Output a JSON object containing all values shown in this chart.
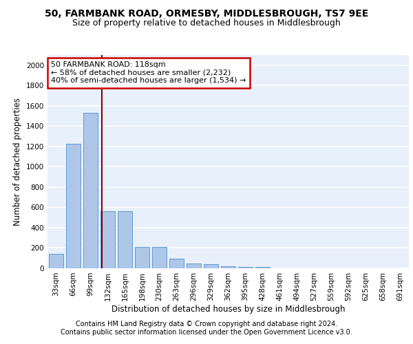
{
  "title1": "50, FARMBANK ROAD, ORMESBY, MIDDLESBROUGH, TS7 9EE",
  "title2": "Size of property relative to detached houses in Middlesbrough",
  "xlabel": "Distribution of detached houses by size in Middlesbrough",
  "ylabel": "Number of detached properties",
  "categories": [
    "33sqm",
    "66sqm",
    "99sqm",
    "132sqm",
    "165sqm",
    "198sqm",
    "230sqm",
    "263sqm",
    "296sqm",
    "329sqm",
    "362sqm",
    "395sqm",
    "428sqm",
    "461sqm",
    "494sqm",
    "527sqm",
    "559sqm",
    "592sqm",
    "625sqm",
    "658sqm",
    "691sqm"
  ],
  "values": [
    140,
    1225,
    1530,
    560,
    560,
    210,
    210,
    95,
    50,
    38,
    22,
    15,
    15,
    0,
    0,
    0,
    0,
    0,
    0,
    0,
    0
  ],
  "bar_color": "#aec6e8",
  "bar_edge_color": "#5b9bd5",
  "annotation_line1": "50 FARMBANK ROAD: 118sqm",
  "annotation_line2": "← 58% of detached houses are smaller (2,232)",
  "annotation_line3": "40% of semi-detached houses are larger (1,534) →",
  "vline_x": 2.67,
  "vline_color": "#8b0000",
  "annotation_box_color": "#ffffff",
  "annotation_box_edge_color": "#cc0000",
  "ylim": [
    0,
    2100
  ],
  "yticks": [
    0,
    200,
    400,
    600,
    800,
    1000,
    1200,
    1400,
    1600,
    1800,
    2000
  ],
  "footer1": "Contains HM Land Registry data © Crown copyright and database right 2024.",
  "footer2": "Contains public sector information licensed under the Open Government Licence v3.0.",
  "background_color": "#e8f0fb",
  "grid_color": "#ffffff",
  "title_fontsize": 10,
  "subtitle_fontsize": 9,
  "label_fontsize": 8.5,
  "tick_fontsize": 7.5,
  "footer_fontsize": 7,
  "annotation_fontsize": 8
}
